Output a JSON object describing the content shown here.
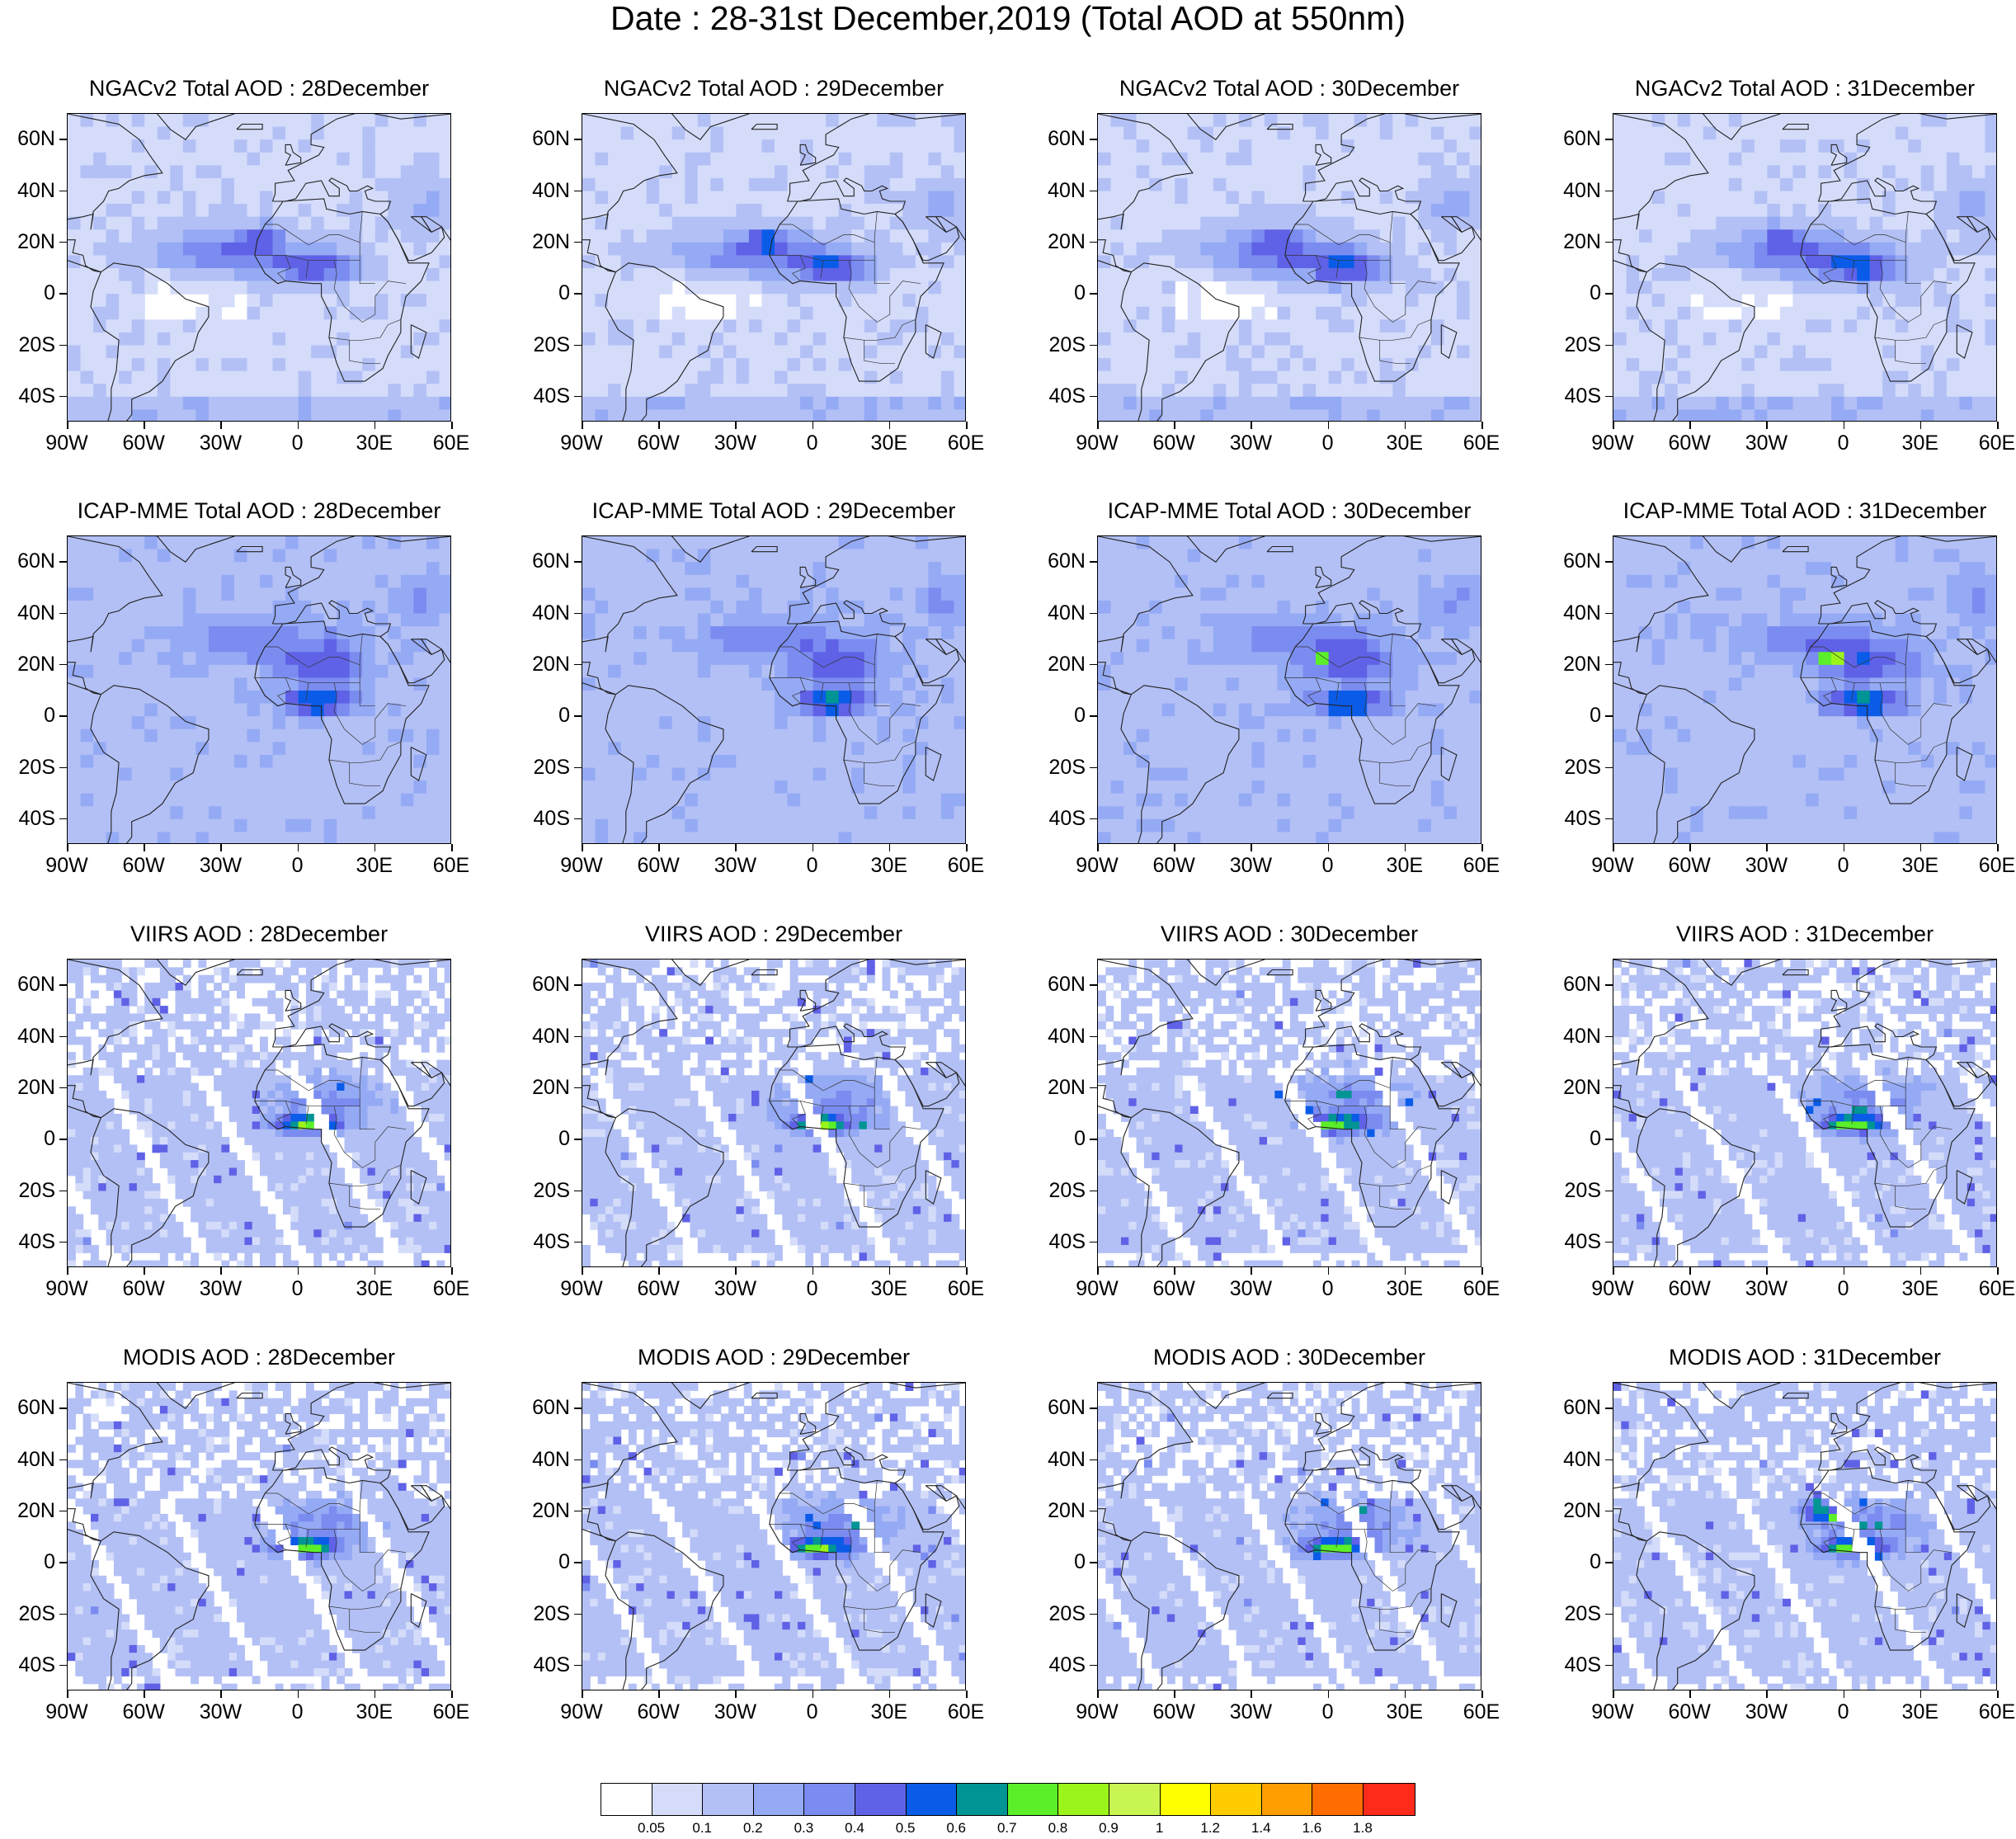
{
  "title": "Date : 28-31st December,2019 (Total AOD at 550nm)",
  "lat_ticks": [
    "60N",
    "40N",
    "20N",
    "0",
    "20S",
    "40S"
  ],
  "lat_values": [
    60,
    40,
    20,
    0,
    -20,
    -40
  ],
  "lon_ticks": [
    "90W",
    "60W",
    "30W",
    "0",
    "30E",
    "60E"
  ],
  "lon_values": [
    -90,
    -60,
    -30,
    0,
    30,
    60
  ],
  "map_extent": {
    "lon_min": -90,
    "lon_max": 60,
    "lat_min": -50,
    "lat_max": 70
  },
  "rows": [
    {
      "dataset": "NGACv2",
      "titles": [
        "NGACv2 Total AOD : 28December",
        "NGACv2 Total AOD : 29December",
        "NGACv2 Total AOD : 30December",
        "NGACv2 Total AOD : 31December"
      ]
    },
    {
      "dataset": "ICAP-MME",
      "titles": [
        "ICAP-MME Total AOD : 28December",
        "ICAP-MME Total AOD : 29December",
        "ICAP-MME Total AOD : 30December",
        "ICAP-MME Total AOD : 31December"
      ]
    },
    {
      "dataset": "VIIRS",
      "titles": [
        "VIIRS AOD : 28December",
        "VIIRS AOD : 29December",
        "VIIRS AOD : 30December",
        "VIIRS AOD : 31December"
      ]
    },
    {
      "dataset": "MODIS",
      "titles": [
        "MODIS AOD : 28December",
        "MODIS AOD : 29December",
        "MODIS AOD : 30December",
        "MODIS AOD : 31December"
      ]
    }
  ],
  "colorbar": {
    "colors": [
      "#ffffff",
      "#d4dcfa",
      "#b3c0f5",
      "#95aaf5",
      "#7b8cf0",
      "#5f62e6",
      "#0a5ce8",
      "#009494",
      "#5bef2a",
      "#9cf51a",
      "#c9f553",
      "#ffff00",
      "#ffcc00",
      "#ff9e00",
      "#ff6d00",
      "#ff2a1a"
    ],
    "labels": [
      "0.05",
      "0.1",
      "0.2",
      "0.3",
      "0.4",
      "0.5",
      "0.6",
      "0.7",
      "0.8",
      "0.9",
      "1",
      "1.2",
      "1.4",
      "1.6",
      "1.8"
    ]
  }
}
